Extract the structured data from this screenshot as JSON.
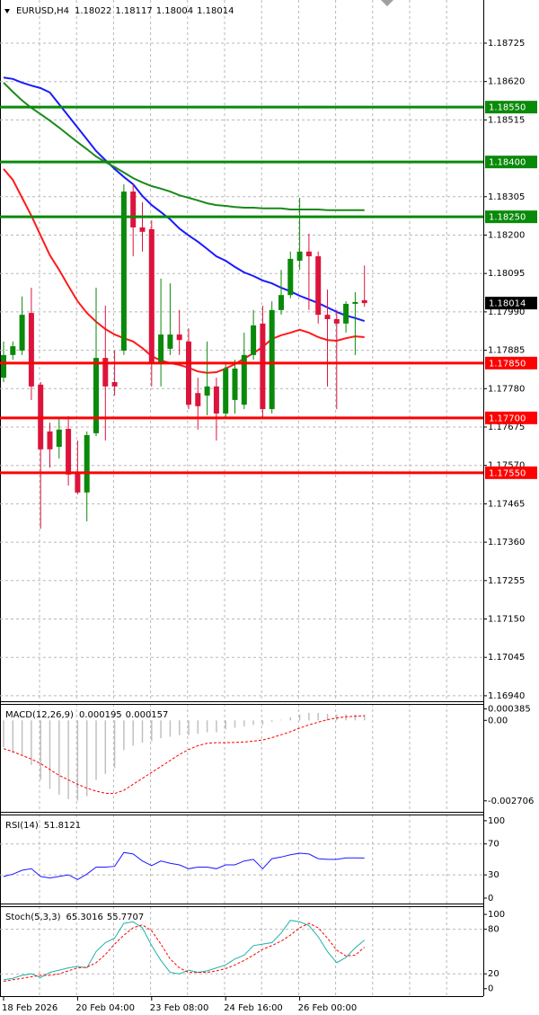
{
  "chart_data": [
    {
      "type": "candlestick",
      "title": "EURUSD,H4",
      "categories": [
        "18 Feb 2026",
        null,
        null,
        null,
        null,
        null,
        null,
        null,
        "20 Feb 04:00",
        null,
        null,
        null,
        null,
        null,
        null,
        null,
        "23 Feb 08:00",
        null,
        null,
        null,
        null,
        null,
        null,
        null,
        "24 Feb 16:00",
        null,
        null,
        null,
        null,
        null,
        null,
        null,
        "26 Feb 00:00",
        null,
        null,
        null,
        null,
        null,
        null,
        null
      ],
      "open": [
        1.1781,
        1.17872,
        1.17884,
        1.17987,
        1.17791,
        1.17663,
        1.17621,
        1.1767,
        1.17552,
        1.17496,
        1.17658,
        1.17864,
        1.17798,
        1.17884,
        1.18319,
        1.18221,
        1.18216,
        1.17847,
        1.17889,
        1.17928,
        1.17909,
        1.17768,
        1.17761,
        1.17786,
        1.17712,
        1.17749,
        1.17736,
        1.17872,
        1.17958,
        1.17724,
        1.17995,
        1.18036,
        1.1813,
        1.18155,
        1.18142,
        1.17982,
        1.1797,
        1.17958,
        1.18012,
        1.18022
      ],
      "high": [
        1.17909,
        1.17909,
        1.18032,
        1.18056,
        1.17798,
        1.17687,
        1.177,
        1.17705,
        1.17638,
        1.17663,
        1.18056,
        1.18007,
        1.17884,
        1.18339,
        1.18339,
        1.1829,
        1.18241,
        1.18081,
        1.18068,
        1.17995,
        1.17945,
        1.1781,
        1.17909,
        1.1781,
        1.17847,
        1.17859,
        1.17933,
        1.17995,
        1.18007,
        1.18019,
        1.18105,
        1.18155,
        1.18302,
        1.18204,
        1.18155,
        1.18051,
        1.17995,
        1.18019,
        1.18044,
        1.18117
      ],
      "low": [
        1.17798,
        1.17859,
        1.17872,
        1.17749,
        1.17397,
        1.17564,
        1.17589,
        1.17515,
        1.17491,
        1.17417,
        1.1765,
        1.17638,
        1.17761,
        1.17872,
        1.18142,
        1.18155,
        1.17786,
        1.17786,
        1.17872,
        1.17872,
        1.17724,
        1.17668,
        1.17707,
        1.17638,
        1.177,
        1.17712,
        1.17724,
        1.17859,
        1.177,
        1.17712,
        1.17982,
        1.18027,
        1.18105,
        1.17995,
        1.17958,
        1.17786,
        1.17724,
        1.17933,
        1.17872,
        1.18004
      ],
      "close": [
        1.17872,
        1.17896,
        1.17982,
        1.17786,
        1.17614,
        1.17614,
        1.17668,
        1.17545,
        1.17496,
        1.17653,
        1.17864,
        1.17786,
        1.17786,
        1.18319,
        1.18221,
        1.18209,
        1.17847,
        1.17928,
        1.17928,
        1.17913,
        1.17736,
        1.17732,
        1.17786,
        1.17712,
        1.17835,
        1.17835,
        1.17872,
        1.17953,
        1.17724,
        1.17995,
        1.18036,
        1.18135,
        1.18155,
        1.18142,
        1.17982,
        1.1797,
        1.17958,
        1.18012,
        1.18017,
        1.18014
      ],
      "up_color": "#0a8a0a",
      "down_color": "#dc143c",
      "series": [
        {
          "color": "#1a1aff",
          "values": [
            1.18631,
            1.18627,
            1.18617,
            1.18609,
            1.18602,
            1.1859,
            1.18558,
            1.18526,
            1.18494,
            1.18462,
            1.1843,
            1.18405,
            1.18381,
            1.18359,
            1.18339,
            1.18307,
            1.18282,
            1.18263,
            1.18243,
            1.18218,
            1.18199,
            1.18182,
            1.18162,
            1.18142,
            1.1813,
            1.18113,
            1.18098,
            1.18088,
            1.18076,
            1.18068,
            1.18056,
            1.18046,
            1.18034,
            1.18024,
            1.18014,
            1.18002,
            1.1799,
            1.1798,
            1.17973,
            1.17965
          ]
        },
        {
          "color": "#ff1a1a",
          "values": [
            1.18381,
            1.18351,
            1.18302,
            1.18253,
            1.18199,
            1.18145,
            1.18105,
            1.18061,
            1.18019,
            1.17987,
            1.17963,
            1.17943,
            1.17928,
            1.17918,
            1.17909,
            1.17891,
            1.17869,
            1.17857,
            1.1785,
            1.17845,
            1.17837,
            1.17827,
            1.17823,
            1.17825,
            1.17835,
            1.17847,
            1.17862,
            1.17877,
            1.17894,
            1.17916,
            1.17926,
            1.17933,
            1.17941,
            1.17933,
            1.17921,
            1.17913,
            1.17911,
            1.17918,
            1.17923,
            1.17921
          ]
        },
        {
          "color": "#1a8a1a",
          "values": [
            1.18617,
            1.18592,
            1.18568,
            1.18548,
            1.18531,
            1.18513,
            1.18494,
            1.18474,
            1.18454,
            1.18435,
            1.18415,
            1.184,
            1.18386,
            1.18371,
            1.18356,
            1.18344,
            1.18334,
            1.18327,
            1.18319,
            1.18309,
            1.18302,
            1.18295,
            1.18287,
            1.18282,
            1.1828,
            1.18277,
            1.18275,
            1.18275,
            1.18273,
            1.18273,
            1.18273,
            1.1827,
            1.1827,
            1.1827,
            1.1827,
            1.18268,
            1.18268,
            1.18268,
            1.18268,
            1.18268
          ]
        }
      ],
      "levels": [
        {
          "value": 1.1855,
          "label": "1.18550",
          "color": "#0a8a0a"
        },
        {
          "value": 1.184,
          "label": "1.18400",
          "color": "#0a8a0a"
        },
        {
          "value": 1.1825,
          "label": "1.18250",
          "color": "#0a8a0a"
        },
        {
          "value": 1.1785,
          "label": "1.17850",
          "color": "#ff0000"
        },
        {
          "value": 1.177,
          "label": "1.17700",
          "color": "#ff0000"
        },
        {
          "value": 1.1755,
          "label": "1.17550",
          "color": "#ff0000"
        }
      ],
      "ylim": [
        1.16925,
        1.18843
      ],
      "yticks": [
        1.18725,
        {
          "value": 1.1862,
          "label": "1.18620"
        },
        1.18515,
        1.18305,
        {
          "value": 1.182,
          "label": "1.18200"
        },
        1.18095,
        {
          "value": 1.1799,
          "label": "1.17990"
        },
        1.17885,
        {
          "value": 1.1778,
          "label": "1.17780"
        },
        1.17675,
        {
          "value": 1.1757,
          "label": "1.17570"
        },
        1.17465,
        {
          "value": 1.1736,
          "label": "1.17360"
        },
        1.17255,
        {
          "value": 1.1715,
          "label": "1.17150"
        },
        1.17045,
        {
          "value": 1.1694,
          "label": "1.16940"
        }
      ],
      "grid": true
    },
    {
      "type": "macd",
      "title": "MACD(12,26,9)",
      "series": [
        {
          "color": "#c0c0c0",
          "style": "bar",
          "values": [
            -0.0009,
            -0.0011,
            -0.0012,
            -0.0015,
            -0.002,
            -0.0023,
            -0.0025,
            -0.00265,
            -0.0027,
            -0.00255,
            -0.002,
            -0.0018,
            -0.0016,
            -0.001,
            -0.00085,
            -0.00075,
            -0.0007,
            -0.0006,
            -0.00055,
            -0.0005,
            -0.0005,
            -0.00045,
            -0.0004,
            -0.0004,
            -0.0003,
            -0.00025,
            -0.0002,
            -0.00015,
            -0.00015,
            -5e-05,
            2e-05,
            0.0001,
            0.0002,
            0.00025,
            0.00025,
            0.00022,
            0.0002,
            0.0002,
            0.0002,
            0.000195
          ]
        },
        {
          "color": "#ff0000",
          "style": "dashed",
          "values": [
            -0.00095,
            -0.00105,
            -0.00118,
            -0.0013,
            -0.00145,
            -0.00165,
            -0.00185,
            -0.002,
            -0.00215,
            -0.00228,
            -0.00238,
            -0.00245,
            -0.00246,
            -0.00235,
            -0.00215,
            -0.00195,
            -0.00175,
            -0.00155,
            -0.00135,
            -0.00115,
            -0.00098,
            -0.00085,
            -0.00077,
            -0.00075,
            -0.00075,
            -0.00074,
            -0.00073,
            -0.0007,
            -0.00066,
            -0.00058,
            -0.00048,
            -0.00038,
            -0.00026,
            -0.00015,
            -6e-05,
            2e-05,
            8e-05,
            0.00012,
            0.00014,
            0.000157
          ]
        }
      ],
      "ylim": [
        -0.003075,
        0.000553
      ],
      "yticks": [
        0.000385,
        {
          "value": 0,
          "label": "0.00"
        },
        -0.002706
      ],
      "grid": false
    },
    {
      "type": "line",
      "title": "RSI(14)",
      "series": [
        {
          "color": "#1a1aff",
          "style": "solid",
          "values": [
            28,
            31,
            36,
            38,
            28,
            26,
            28,
            30,
            24,
            31,
            40,
            40,
            41,
            59,
            57,
            48,
            42,
            48,
            45,
            43,
            38,
            40,
            40,
            38,
            43,
            43,
            48,
            50,
            38,
            51,
            53,
            56,
            58,
            57,
            51,
            50,
            50,
            52,
            52,
            51.8121
          ]
        }
      ],
      "ylim": [
        -7,
        108
      ],
      "yticks": [
        100,
        70,
        30,
        0
      ],
      "grid": "inner"
    },
    {
      "type": "line",
      "title": "Stoch(5,3,3)",
      "series": [
        {
          "color": "#20b2aa",
          "style": "solid",
          "values": [
            12,
            14,
            18,
            20,
            15,
            22,
            25,
            28,
            30,
            28,
            50,
            62,
            68,
            88,
            90,
            82,
            58,
            38,
            22,
            20,
            25,
            22,
            24,
            28,
            32,
            40,
            45,
            58,
            60,
            62,
            75,
            92,
            90,
            85,
            70,
            50,
            35,
            42,
            55,
            65.3016
          ]
        },
        {
          "color": "#ff0000",
          "style": "dashed",
          "values": [
            10,
            12,
            14,
            16,
            18,
            18,
            20,
            24,
            28,
            29,
            35,
            46,
            60,
            72,
            82,
            86,
            78,
            60,
            40,
            28,
            22,
            22,
            22,
            24,
            27,
            32,
            38,
            45,
            53,
            58,
            64,
            72,
            82,
            88,
            82,
            68,
            52,
            44,
            45,
            55.7707
          ]
        }
      ],
      "ylim": [
        -10,
        111
      ],
      "yticks": [
        100,
        80,
        20,
        0
      ],
      "grid": "inner"
    }
  ]
}
